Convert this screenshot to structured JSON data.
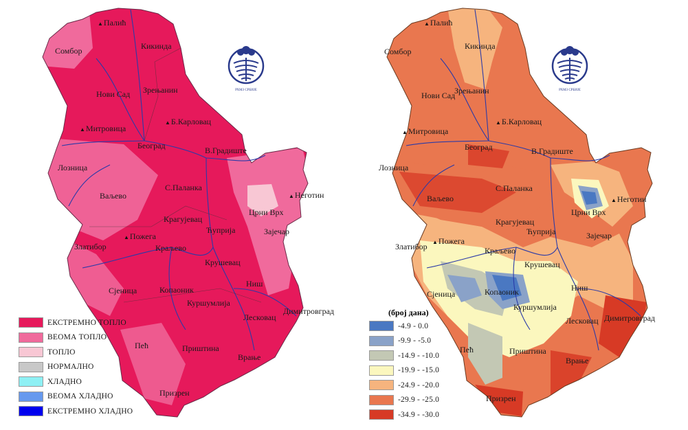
{
  "left_map": {
    "legend": [
      {
        "label": "ЕКСТРЕМНО ТОПЛО",
        "color": "#e6195b"
      },
      {
        "label": "ВЕОМА ТОПЛО",
        "color": "#f06a9c"
      },
      {
        "label": "ТОПЛО",
        "color": "#f8c7d4"
      },
      {
        "label": "НОРМАЛНО",
        "color": "#c8c8c8"
      },
      {
        "label": "ХЛАДНО",
        "color": "#8ef0f4"
      },
      {
        "label": "ВЕОМА ХЛАДНО",
        "color": "#6699ee"
      },
      {
        "label": "ЕКСТРЕМНО ХЛАДНО",
        "color": "#0000ee"
      }
    ],
    "cities": {
      "palic": "Палић",
      "sombor": "Сомбор",
      "kikinda": "Кикинда",
      "zrenjanin": "Зрењанин",
      "novi_sad": "Нови Сад",
      "sr_mitrovica": "Митровица",
      "b_karlovac": "Б.Карловац",
      "beograd": "Београд",
      "v_gradiste": "В.Градиште",
      "loznica": "Лозница",
      "s_palanka": "С.Паланка",
      "negotin": "Неготин",
      "valjevo": "Ваљево",
      "crni_vrh": "Црни Врх",
      "kragujevac": "Крагујевац",
      "cuprija": "Ћуприја",
      "zajecar": "Зајечар",
      "pozega": "Пожега",
      "zlatibor": "Златибор",
      "kraljevo": "Краљево",
      "krusevac": "Крушевац",
      "sjenica": "Сјеница",
      "kopaonik": "Копаоник",
      "nis": "Ниш",
      "kursumlija": "Куршумлија",
      "dimitrovgrad": "Димитровград",
      "leskovac": "Лесковац",
      "pec": "Пећ",
      "pristina": "Приштина",
      "vranje": "Врање",
      "prizren": "Призрен"
    }
  },
  "right_map": {
    "legend_title": "(број дана)",
    "legend": [
      {
        "label": "-4.9 - 0.0",
        "color": "#4a78c2"
      },
      {
        "label": "-9.9 - -5.0",
        "color": "#8aa2c8"
      },
      {
        "label": "-14.9 - -10.0",
        "color": "#c3c8b4"
      },
      {
        "label": "-19.9 - -15.0",
        "color": "#fbf7be"
      },
      {
        "label": "-24.9 - -20.0",
        "color": "#f6b47e"
      },
      {
        "label": "-29.9 - -25.0",
        "color": "#e9774f"
      },
      {
        "label": "-34.9 - -30.0",
        "color": "#d73a25"
      }
    ]
  },
  "logo": {
    "caption": "РХМЗ СРБИЈЕ",
    "color": "#2a3a8c"
  }
}
